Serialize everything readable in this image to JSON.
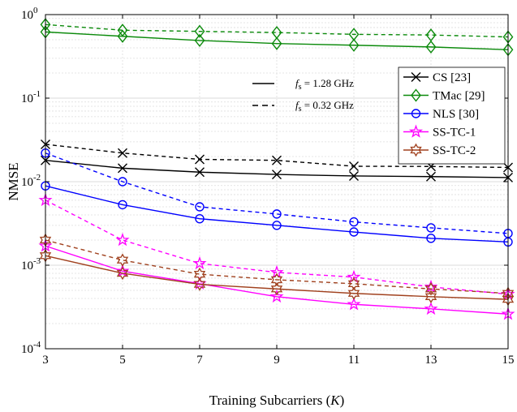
{
  "chart_data": {
    "type": "line",
    "xlabel_main": "Training Subcarriers (",
    "xlabel_var": "K",
    "xlabel_end": ")",
    "ylabel": "NMSE",
    "x": [
      3,
      5,
      7,
      9,
      11,
      13,
      15
    ],
    "x_ticks": [
      "3",
      "5",
      "7",
      "9",
      "11",
      "13",
      "15"
    ],
    "y_scale": "log",
    "ylim": [
      0.0001,
      1
    ],
    "y_ticks": [
      {
        "base": "10",
        "exp": "-4",
        "value": 0.0001
      },
      {
        "base": "10",
        "exp": "-3",
        "value": 0.001
      },
      {
        "base": "10",
        "exp": "-2",
        "value": 0.01
      },
      {
        "base": "10",
        "exp": "-1",
        "value": 0.1
      },
      {
        "base": "10",
        "exp": "0",
        "value": 1
      }
    ],
    "grid": true,
    "legend_position": "top-right",
    "series": [
      {
        "name": "CS [23]",
        "color": "#000000",
        "marker": "x",
        "solid": [
          0.018,
          0.0145,
          0.013,
          0.0122,
          0.0117,
          0.0115,
          0.0112
        ],
        "dashed": [
          0.028,
          0.022,
          0.0185,
          0.018,
          0.0153,
          0.0152,
          0.0148
        ]
      },
      {
        "name": "TMac [29]",
        "color": "#0b8a0b",
        "marker": "diamond",
        "solid": [
          0.62,
          0.55,
          0.49,
          0.45,
          0.43,
          0.41,
          0.38
        ],
        "dashed": [
          0.76,
          0.65,
          0.63,
          0.61,
          0.58,
          0.57,
          0.54
        ]
      },
      {
        "name": "NLS [30]",
        "color": "#0000ff",
        "marker": "circle",
        "solid": [
          0.0089,
          0.0053,
          0.0036,
          0.003,
          0.0025,
          0.0021,
          0.0019
        ],
        "dashed": [
          0.022,
          0.01,
          0.005,
          0.0041,
          0.0033,
          0.0028,
          0.0024
        ]
      },
      {
        "name": "SS-TC-1",
        "color": "#ff00ff",
        "marker": "pentagram",
        "solid": [
          0.0017,
          0.00085,
          0.0006,
          0.00042,
          0.00034,
          0.0003,
          0.00026
        ],
        "dashed": [
          0.006,
          0.002,
          0.00105,
          0.00082,
          0.00072,
          0.00055,
          0.00045
        ]
      },
      {
        "name": "SS-TC-2",
        "color": "#a0411e",
        "marker": "hexagram",
        "solid": [
          0.0013,
          0.0008,
          0.00059,
          0.00052,
          0.00046,
          0.00042,
          0.00039
        ],
        "dashed": [
          0.002,
          0.00115,
          0.00078,
          0.00067,
          0.0006,
          0.00052,
          0.00046
        ]
      }
    ],
    "line_style_legend": [
      {
        "style": "solid",
        "sym": "f",
        "sub": "s",
        "rest": " = 1.28 GHz"
      },
      {
        "style": "dashed",
        "sym": "f",
        "sub": "s",
        "rest": " = 0.32 GHz"
      }
    ]
  }
}
